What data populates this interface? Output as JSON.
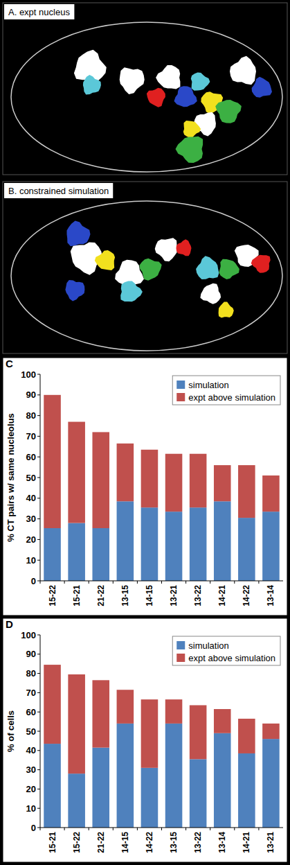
{
  "images": [
    {
      "title": "A. expt nucleus"
    },
    {
      "title": "B. constrained simulation"
    }
  ],
  "chart_data": [
    {
      "type": "bar",
      "stacked": true,
      "panel_label": "C",
      "y_label": "% CT pairs w/ same nucleolus",
      "categories": [
        "15-22",
        "15-21",
        "21-22",
        "13-15",
        "14-15",
        "13-21",
        "13-22",
        "14-21",
        "14-22",
        "13-14"
      ],
      "series": [
        {
          "name": "simulation",
          "color": "#4f81bd",
          "values": [
            25.5,
            28,
            25.5,
            38.5,
            35.5,
            33.5,
            35.5,
            38.5,
            30.5,
            33.5
          ]
        },
        {
          "name": "expt above simulation",
          "color": "#c0504d",
          "values": [
            64.5,
            49,
            46.5,
            28,
            28,
            28,
            26,
            17.5,
            25.5,
            17.5
          ]
        }
      ],
      "ylim": [
        0,
        100
      ],
      "yticks": [
        0,
        10,
        20,
        30,
        40,
        50,
        60,
        70,
        80,
        90,
        100
      ],
      "legend": "top-right",
      "grid": false
    },
    {
      "type": "bar",
      "stacked": true,
      "panel_label": "D",
      "y_label": "% of cells",
      "categories": [
        "15-21",
        "15-22",
        "21-22",
        "14-15",
        "14-22",
        "13-15",
        "13-22",
        "13-14",
        "14-21",
        "13-21"
      ],
      "series": [
        {
          "name": "simulation",
          "color": "#4f81bd",
          "values": [
            43.5,
            28,
            41.5,
            54,
            31,
            54,
            35.5,
            49,
            38.5,
            46
          ]
        },
        {
          "name": "expt above simulation",
          "color": "#c0504d",
          "values": [
            41,
            51.5,
            35,
            17.5,
            35.5,
            12.5,
            28,
            12.5,
            18,
            8
          ]
        }
      ],
      "ylim": [
        0,
        100
      ],
      "yticks": [
        0,
        10,
        20,
        30,
        40,
        50,
        60,
        70,
        80,
        90,
        100
      ],
      "legend": "top-right",
      "grid": false
    }
  ]
}
